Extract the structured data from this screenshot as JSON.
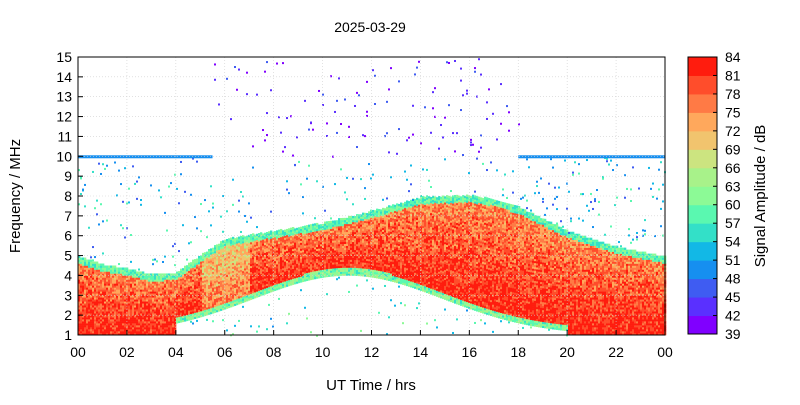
{
  "chart_data": {
    "type": "heatmap",
    "title": "2025-03-29",
    "xlabel": "UT Time / hrs",
    "ylabel": "Frequency / MHz",
    "colorbar_label": "Signal Amplitude / dB",
    "x_ticks": [
      "00",
      "02",
      "04",
      "06",
      "08",
      "10",
      "12",
      "14",
      "16",
      "18",
      "20",
      "22",
      "00"
    ],
    "x_range_hours": [
      0,
      24
    ],
    "y_ticks": [
      1,
      2,
      3,
      4,
      5,
      6,
      7,
      8,
      9,
      10,
      11,
      12,
      13,
      14,
      15
    ],
    "y_range_mhz": [
      1,
      15
    ],
    "colorbar_ticks": [
      39,
      42,
      45,
      48,
      51,
      54,
      57,
      60,
      63,
      66,
      69,
      72,
      75,
      78,
      81,
      84
    ],
    "colorbar_range_db": [
      39,
      84
    ],
    "colorbar_colors": [
      "#8000ff",
      "#5a30ff",
      "#3f5cf2",
      "#168ff0",
      "#12b8e6",
      "#33e0c8",
      "#5af8b0",
      "#8cfa96",
      "#a8f28a",
      "#cce480",
      "#f1c46e",
      "#ffa85c",
      "#ff7a45",
      "#ff4d2b",
      "#ff1c0e"
    ],
    "grid": true,
    "colorbar_position": "right",
    "background_band": {
      "lower_mhz": 1,
      "upper_mhz_profile": [
        [
          0,
          4.9
        ],
        [
          1,
          4.5
        ],
        [
          2,
          4.3
        ],
        [
          3,
          4.0
        ],
        [
          4,
          4.1
        ],
        [
          5,
          5.0
        ],
        [
          6,
          5.8
        ],
        [
          8,
          6.2
        ],
        [
          10,
          6.6
        ],
        [
          12,
          7.2
        ],
        [
          14,
          7.9
        ],
        [
          16,
          8.0
        ],
        [
          17,
          7.8
        ],
        [
          18,
          7.4
        ],
        [
          19,
          6.8
        ],
        [
          20,
          6.2
        ],
        [
          22,
          5.4
        ],
        [
          24,
          4.9
        ]
      ],
      "peak_db": 80
    },
    "sparse_band_10_15mhz_hours": [
      5.5,
      18.0
    ],
    "noise_line_10mhz_hours": [
      [
        0,
        5.5
      ],
      [
        18,
        24
      ]
    ]
  }
}
